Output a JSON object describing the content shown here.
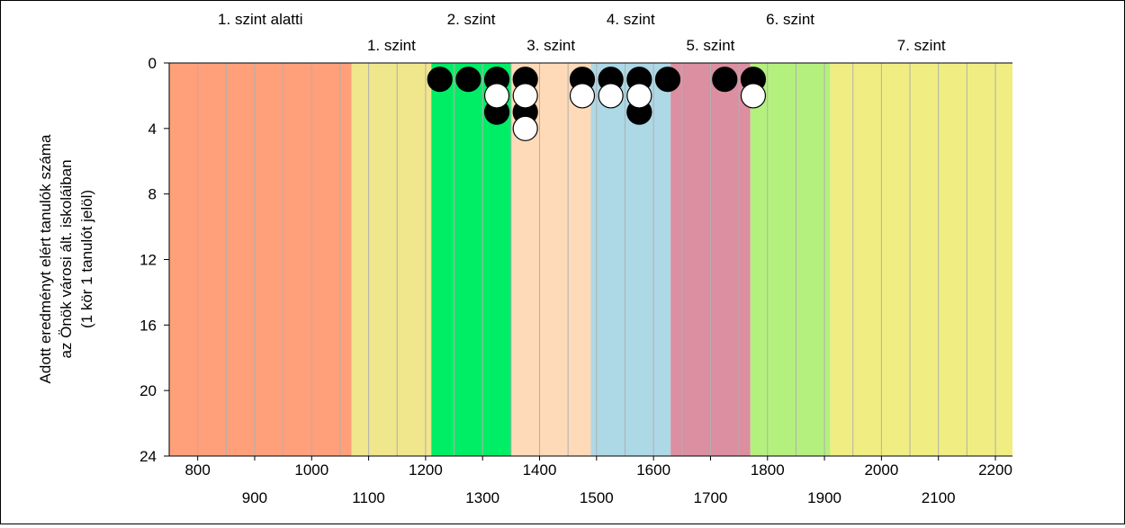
{
  "chart_data": {
    "type": "scatter",
    "ylabel_lines": [
      "Adott eredményt elért tanulók száma",
      "az Önök városi ált. iskoláiban",
      "(1 kör 1 tanulót jelöl)"
    ],
    "xlim": [
      750,
      2230
    ],
    "ylim": [
      0,
      24
    ],
    "y_inverted": true,
    "grid": true,
    "x_ticks_upper": [
      "800",
      "1000",
      "1200",
      "1400",
      "1600",
      "1800",
      "2000",
      "2200"
    ],
    "x_ticks_lower": [
      "900",
      "1100",
      "1300",
      "1500",
      "1700",
      "1900",
      "2100"
    ],
    "y_ticks": [
      "0",
      "4",
      "8",
      "12",
      "16",
      "20",
      "24"
    ],
    "bands": [
      {
        "label": "1. szint alatti",
        "from": 750,
        "to": 1070,
        "color": "#FFA07A"
      },
      {
        "label": "1. szint",
        "from": 1070,
        "to": 1210,
        "color": "#F0E68C"
      },
      {
        "label": "2. szint",
        "from": 1210,
        "to": 1350,
        "color": "#00EE66"
      },
      {
        "label": "3. szint",
        "from": 1350,
        "to": 1490,
        "color": "#FFDAB9"
      },
      {
        "label": "4. szint",
        "from": 1490,
        "to": 1630,
        "color": "#ADD8E6"
      },
      {
        "label": "5. szint",
        "from": 1630,
        "to": 1770,
        "color": "#DB8FA0"
      },
      {
        "label": "6. szint",
        "from": 1770,
        "to": 1910,
        "color": "#B4F07E"
      },
      {
        "label": "7. szint",
        "from": 1910,
        "to": 2230,
        "color": "#F0EE82"
      }
    ],
    "series": [
      {
        "fill": "#000000",
        "points": [
          {
            "x": 1225,
            "y": 1
          },
          {
            "x": 1275,
            "y": 1
          },
          {
            "x": 1325,
            "y": 1
          },
          {
            "x": 1325,
            "y": 3
          },
          {
            "x": 1375,
            "y": 1
          },
          {
            "x": 1375,
            "y": 3
          },
          {
            "x": 1475,
            "y": 1
          },
          {
            "x": 1525,
            "y": 1
          },
          {
            "x": 1575,
            "y": 1
          },
          {
            "x": 1575,
            "y": 3
          },
          {
            "x": 1625,
            "y": 1
          },
          {
            "x": 1725,
            "y": 1
          },
          {
            "x": 1775,
            "y": 1
          }
        ]
      },
      {
        "fill": "#FFFFFF",
        "points": [
          {
            "x": 1325,
            "y": 2
          },
          {
            "x": 1375,
            "y": 2
          },
          {
            "x": 1375,
            "y": 4
          },
          {
            "x": 1475,
            "y": 2
          },
          {
            "x": 1525,
            "y": 2
          },
          {
            "x": 1575,
            "y": 2
          },
          {
            "x": 1775,
            "y": 2
          }
        ]
      }
    ]
  }
}
